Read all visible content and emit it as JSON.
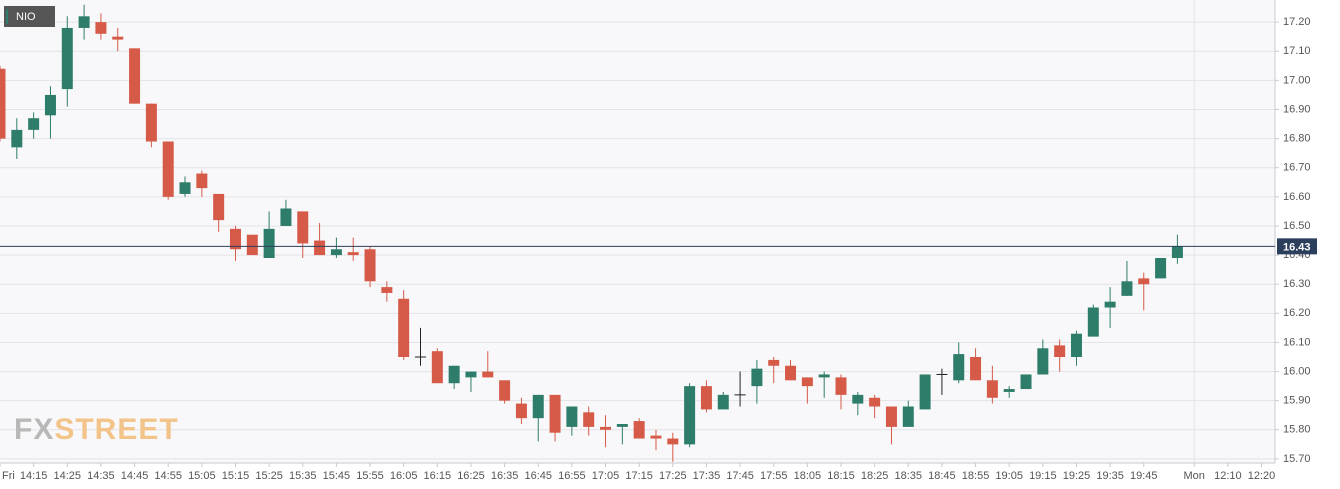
{
  "chart_data": {
    "type": "candlestick",
    "legend": "NIO",
    "watermark": [
      "FX",
      "STREET"
    ],
    "categories": [
      "Fri",
      null,
      "14:15",
      null,
      "14:25",
      null,
      "14:35",
      null,
      "14:45",
      null,
      "14:55",
      null,
      "15:05",
      null,
      "15:15",
      null,
      "15:25",
      null,
      "15:35",
      null,
      "15:45",
      null,
      "15:55",
      null,
      "16:05",
      null,
      "16:15",
      null,
      "16:25",
      null,
      "16:35",
      null,
      "16:45",
      null,
      "16:55",
      null,
      "17:05",
      null,
      "17:15",
      null,
      "17:25",
      null,
      "17:35",
      null,
      "17:45",
      null,
      "17:55",
      null,
      "18:05",
      null,
      "18:15",
      null,
      "18:25",
      null,
      "18:35",
      null,
      "18:45",
      null,
      "18:55",
      null,
      "19:05",
      null,
      "19:15",
      null,
      "19:25",
      null,
      "19:35",
      null,
      "19:45",
      null,
      null,
      "Mon",
      null,
      "12:10",
      null,
      "12:20"
    ],
    "open": [
      17.04,
      16.77,
      16.83,
      16.88,
      16.97,
      17.18,
      17.2,
      17.15,
      17.11,
      16.92,
      16.79,
      16.61,
      16.68,
      16.61,
      16.49,
      16.47,
      16.39,
      16.5,
      16.55,
      16.45,
      16.4,
      16.41,
      16.42,
      16.29,
      16.25,
      16.05,
      16.07,
      15.96,
      15.98,
      16.0,
      15.97,
      15.89,
      15.84,
      15.92,
      15.81,
      15.86,
      15.81,
      15.81,
      15.83,
      15.78,
      15.77,
      15.75,
      15.95,
      15.87,
      15.92,
      15.95,
      16.04,
      16.02,
      15.98,
      15.98,
      15.98,
      15.89,
      15.91,
      15.88,
      15.81,
      15.87,
      15.99,
      15.97,
      16.05,
      15.97,
      15.93,
      15.94,
      15.99,
      16.09,
      16.05,
      16.12,
      16.22,
      16.26,
      16.32,
      16.32,
      16.39,
      null,
      null,
      null,
      null,
      null
    ],
    "high": [
      17.05,
      16.87,
      16.89,
      16.98,
      17.22,
      17.26,
      17.23,
      17.18,
      17.11,
      16.92,
      16.79,
      16.67,
      16.69,
      16.61,
      16.5,
      16.47,
      16.55,
      16.59,
      16.55,
      16.51,
      16.46,
      16.46,
      16.43,
      16.31,
      16.28,
      16.15,
      16.08,
      16.02,
      16.0,
      16.07,
      15.97,
      15.91,
      15.92,
      15.92,
      15.88,
      15.88,
      15.85,
      15.82,
      15.84,
      15.8,
      15.79,
      15.96,
      15.97,
      15.93,
      16.0,
      16.04,
      16.05,
      16.04,
      15.98,
      16.0,
      15.99,
      15.93,
      15.92,
      15.88,
      15.9,
      15.99,
      16.01,
      16.1,
      16.08,
      16.02,
      15.95,
      15.99,
      16.11,
      16.11,
      16.14,
      16.23,
      16.29,
      16.38,
      16.34,
      16.39,
      16.47,
      null,
      null,
      null,
      null,
      null
    ],
    "low": [
      16.79,
      16.73,
      16.8,
      16.8,
      16.91,
      17.14,
      17.14,
      17.1,
      16.92,
      16.77,
      16.59,
      16.6,
      16.6,
      16.48,
      16.38,
      16.4,
      16.39,
      16.5,
      16.39,
      16.4,
      16.39,
      16.38,
      16.29,
      16.24,
      16.04,
      16.02,
      15.96,
      15.94,
      15.93,
      15.98,
      15.89,
      15.82,
      15.76,
      15.76,
      15.78,
      15.78,
      15.74,
      15.75,
      15.77,
      15.73,
      15.69,
      15.74,
      15.86,
      15.87,
      15.88,
      15.89,
      15.96,
      15.97,
      15.89,
      15.91,
      15.87,
      15.85,
      15.84,
      15.75,
      15.81,
      15.87,
      15.92,
      15.96,
      15.97,
      15.89,
      15.91,
      15.94,
      15.99,
      16.0,
      16.02,
      16.12,
      16.15,
      16.26,
      16.21,
      16.32,
      16.37,
      null,
      null,
      null,
      null,
      null
    ],
    "close": [
      16.8,
      16.83,
      16.87,
      16.95,
      17.18,
      17.22,
      17.16,
      17.14,
      16.92,
      16.79,
      16.6,
      16.65,
      16.63,
      16.52,
      16.42,
      16.4,
      16.49,
      16.56,
      16.44,
      16.4,
      16.42,
      16.4,
      16.31,
      16.27,
      16.05,
      16.05,
      15.96,
      16.02,
      16.0,
      15.98,
      15.9,
      15.84,
      15.92,
      15.79,
      15.88,
      15.81,
      15.8,
      15.82,
      15.77,
      15.77,
      15.75,
      15.95,
      15.87,
      15.92,
      15.92,
      16.01,
      16.02,
      15.97,
      15.95,
      15.99,
      15.92,
      15.92,
      15.88,
      15.81,
      15.88,
      15.99,
      15.99,
      16.06,
      15.97,
      15.91,
      15.94,
      15.99,
      16.08,
      16.05,
      16.13,
      16.22,
      16.24,
      16.31,
      16.3,
      16.39,
      16.43,
      null,
      null,
      null,
      null,
      null
    ],
    "last_price": 16.43,
    "up_color": "#2e7d6a",
    "down_color": "#d65a48",
    "doji_color": "#222222",
    "ylim": [
      15.686,
      17.276
    ],
    "yticks": [
      {
        "value": 15.7,
        "label": "15.70"
      },
      {
        "value": 15.8,
        "label": "15.80"
      },
      {
        "value": 15.9,
        "label": "15.90"
      },
      {
        "value": 16.0,
        "label": "16.00"
      },
      {
        "value": 16.1,
        "label": "16.10"
      },
      {
        "value": 16.2,
        "label": "16.20"
      },
      {
        "value": 16.3,
        "label": "16.30"
      },
      {
        "value": 16.4,
        "label": "16.40"
      },
      {
        "value": 16.5,
        "label": "16.50"
      },
      {
        "value": 16.6,
        "label": "16.60"
      },
      {
        "value": 16.7,
        "label": "16.70"
      },
      {
        "value": 16.8,
        "label": "16.80"
      },
      {
        "value": 16.9,
        "label": "16.90"
      },
      {
        "value": 17.0,
        "label": "17.00"
      },
      {
        "value": 17.1,
        "label": "17.10"
      },
      {
        "value": 17.2,
        "label": "17.20"
      }
    ],
    "grid": true
  }
}
